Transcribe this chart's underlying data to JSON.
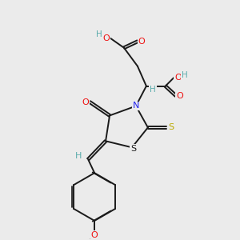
{
  "background_color": "#ebebeb",
  "bond_color": "#1a1a1a",
  "atom_colors": {
    "H": "#5aacac",
    "O": "#ee1111",
    "N": "#2222ee",
    "S_yellow": "#bbaa00",
    "S_black": "#1a1a1a"
  },
  "figsize": [
    3.0,
    3.0
  ],
  "dpi": 100
}
